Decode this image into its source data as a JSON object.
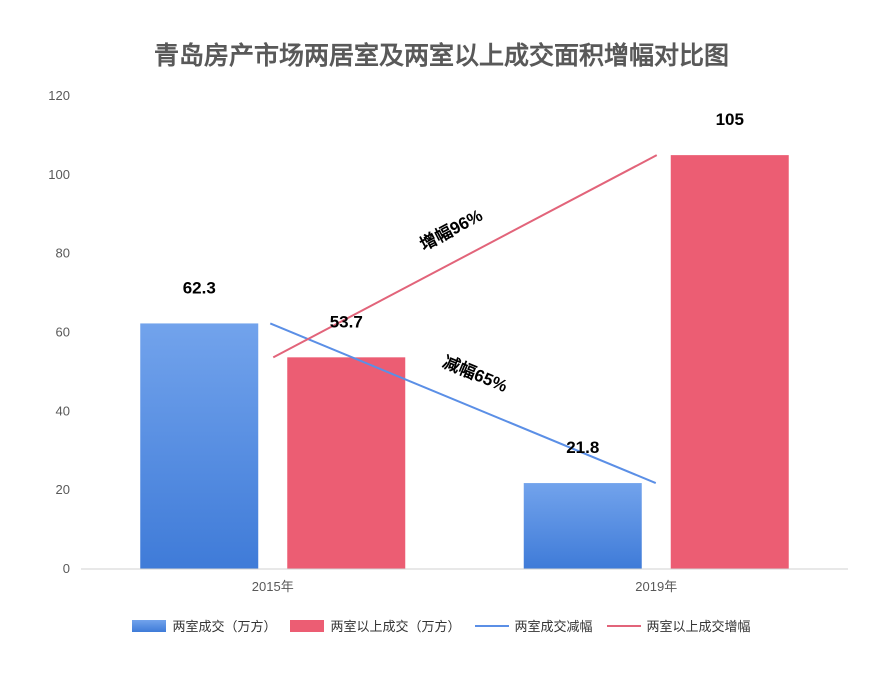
{
  "chart_data": {
    "type": "bar",
    "title": "青岛房产市场两居室及两室以上成交面积增幅对比图",
    "categories": [
      "2015年",
      "2019年"
    ],
    "ylim": [
      0,
      120
    ],
    "yticks": [
      "0",
      "20",
      "40",
      "60",
      "80",
      "100",
      "120"
    ],
    "grid": false,
    "legend_position": "bottom",
    "series": [
      {
        "name": "两室成交（万方）",
        "values": [
          62.3,
          21.8
        ],
        "labels": [
          "62.3",
          "21.8"
        ],
        "color": "#4a86dd"
      },
      {
        "name": "两室以上成交（万方）",
        "values": [
          53.7,
          105
        ],
        "labels": [
          "53.7",
          "105"
        ],
        "color": "#ec5d73"
      }
    ],
    "trend_lines": [
      {
        "name": "两室成交减幅",
        "from": 62.3,
        "to": 21.8,
        "color": "#5b8fe6",
        "annotation": "减幅65%"
      },
      {
        "name": "两室以上成交增幅",
        "from": 53.7,
        "to": 105,
        "color": "#e2647a",
        "annotation": "增幅96%"
      }
    ]
  }
}
